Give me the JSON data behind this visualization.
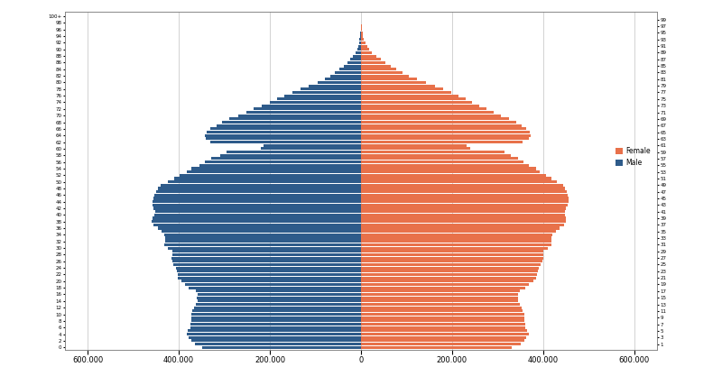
{
  "title": "",
  "female_color": "#E8714A",
  "male_color": "#2E5B8A",
  "background_color": "#FFFFFF",
  "xlim": 650000,
  "xtick_values": [
    -600000,
    -400000,
    -200000,
    0,
    200000,
    400000,
    600000
  ],
  "ages": [
    0,
    1,
    2,
    3,
    4,
    5,
    6,
    7,
    8,
    9,
    10,
    11,
    12,
    13,
    14,
    15,
    16,
    17,
    18,
    19,
    20,
    21,
    22,
    23,
    24,
    25,
    26,
    27,
    28,
    29,
    30,
    31,
    32,
    33,
    34,
    35,
    36,
    37,
    38,
    39,
    40,
    41,
    42,
    43,
    44,
    45,
    46,
    47,
    48,
    49,
    50,
    51,
    52,
    53,
    54,
    55,
    56,
    57,
    58,
    59,
    60,
    61,
    62,
    63,
    64,
    65,
    66,
    67,
    68,
    69,
    70,
    71,
    72,
    73,
    74,
    75,
    76,
    77,
    78,
    79,
    80,
    81,
    82,
    83,
    84,
    85,
    86,
    87,
    88,
    89,
    90,
    91,
    92,
    93,
    94,
    95,
    96,
    97,
    98,
    99,
    100
  ],
  "male": [
    348000,
    365000,
    372000,
    378000,
    382000,
    380000,
    375000,
    375000,
    373000,
    372000,
    372000,
    370000,
    367000,
    362000,
    358000,
    360000,
    358000,
    363000,
    378000,
    386000,
    395000,
    402000,
    403000,
    405000,
    407000,
    412000,
    415000,
    416000,
    415000,
    415000,
    425000,
    432000,
    430000,
    430000,
    432000,
    438000,
    445000,
    455000,
    460000,
    458000,
    454000,
    452000,
    455000,
    458000,
    457000,
    455000,
    453000,
    450000,
    445000,
    440000,
    425000,
    410000,
    398000,
    382000,
    372000,
    355000,
    342000,
    328000,
    310000,
    295000,
    220000,
    215000,
    330000,
    340000,
    342000,
    338000,
    330000,
    318000,
    305000,
    290000,
    270000,
    252000,
    235000,
    218000,
    200000,
    185000,
    168000,
    150000,
    132000,
    115000,
    95000,
    80000,
    68000,
    58000,
    48000,
    38000,
    30000,
    23000,
    17000,
    12000,
    8500,
    6000,
    4200,
    3000,
    2000,
    1300,
    800,
    450,
    250,
    130,
    150
  ],
  "female": [
    330000,
    350000,
    358000,
    363000,
    368000,
    365000,
    360000,
    360000,
    358000,
    358000,
    358000,
    355000,
    352000,
    348000,
    344000,
    345000,
    344000,
    348000,
    360000,
    368000,
    378000,
    384000,
    386000,
    388000,
    390000,
    395000,
    398000,
    400000,
    400000,
    400000,
    410000,
    418000,
    418000,
    418000,
    420000,
    428000,
    435000,
    445000,
    450000,
    450000,
    448000,
    447000,
    450000,
    454000,
    455000,
    455000,
    453000,
    452000,
    448000,
    443000,
    430000,
    418000,
    407000,
    393000,
    384000,
    368000,
    356000,
    344000,
    328000,
    315000,
    240000,
    232000,
    355000,
    368000,
    372000,
    370000,
    362000,
    352000,
    340000,
    325000,
    308000,
    292000,
    275000,
    260000,
    244000,
    230000,
    215000,
    198000,
    180000,
    162000,
    142000,
    122000,
    106000,
    92000,
    78000,
    65000,
    53000,
    43000,
    33000,
    24000,
    18000,
    13000,
    9200,
    6800,
    4800,
    3200,
    2000,
    1200,
    700,
    380,
    430
  ],
  "legend_female": "Female",
  "legend_male": "Male"
}
